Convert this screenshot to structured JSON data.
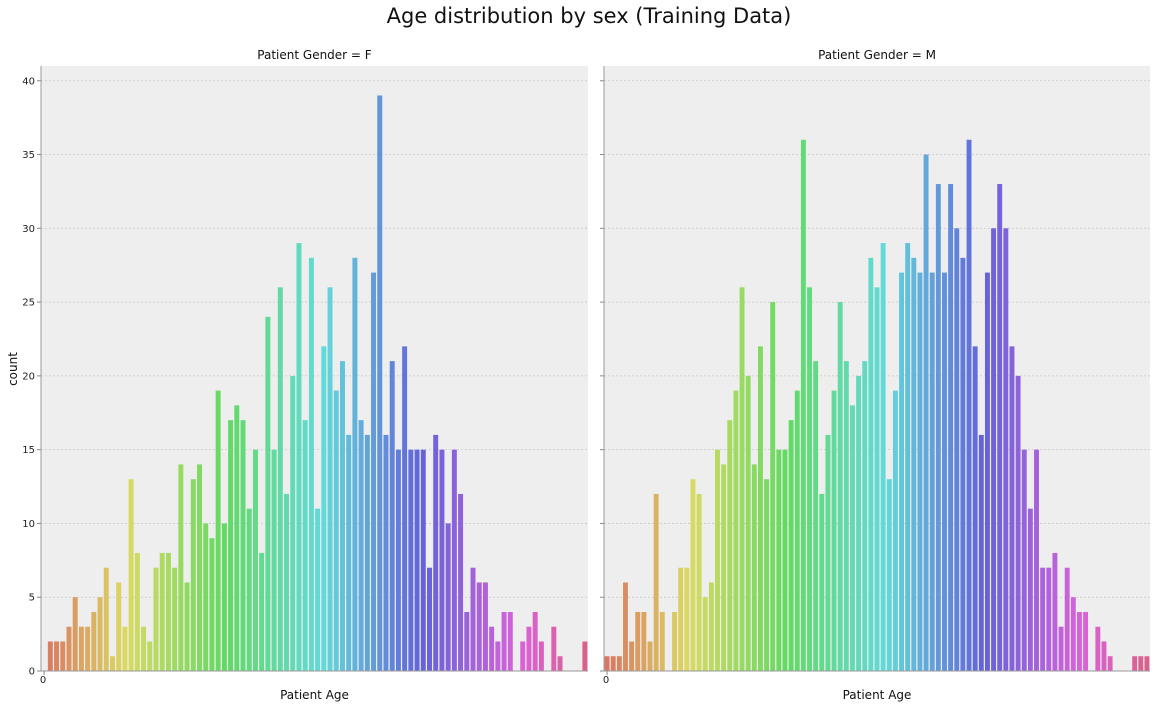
{
  "figure_title": "Age distribution by sex (Training Data)",
  "chart_data": [
    {
      "type": "bar",
      "title": "Patient Gender = F",
      "xlabel": "Patient Age",
      "ylabel": "count",
      "x_tick_labels": [
        "0"
      ],
      "yticks": [
        0,
        5,
        10,
        15,
        20,
        25,
        30,
        35,
        40
      ],
      "ylim": [
        0,
        41
      ],
      "grid": true,
      "values": [
        0,
        2,
        2,
        2,
        3,
        5,
        3,
        3,
        4,
        5,
        7,
        1,
        6,
        3,
        13,
        8,
        3,
        2,
        7,
        8,
        8,
        7,
        14,
        6,
        13,
        14,
        10,
        9,
        19,
        10,
        17,
        18,
        17,
        11,
        15,
        8,
        24,
        15,
        26,
        12,
        20,
        29,
        17,
        28,
        11,
        22,
        26,
        19,
        21,
        16,
        28,
        17,
        16,
        27,
        39,
        16,
        21,
        15,
        22,
        15,
        15,
        15,
        7,
        16,
        15,
        10,
        15,
        12,
        4,
        7,
        6,
        6,
        3,
        2,
        4,
        4,
        0,
        2,
        3,
        4,
        2,
        0,
        3,
        1,
        0,
        0,
        0,
        2
      ]
    },
    {
      "type": "bar",
      "title": "Patient Gender = M",
      "xlabel": "Patient Age",
      "ylabel": "",
      "x_tick_labels": [
        "0"
      ],
      "yticks": [
        0,
        5,
        10,
        15,
        20,
        25,
        30,
        35,
        40
      ],
      "ylim": [
        0,
        41
      ],
      "grid": true,
      "values": [
        1,
        1,
        1,
        6,
        2,
        4,
        4,
        2,
        12,
        4,
        0,
        4,
        7,
        7,
        13,
        12,
        5,
        6,
        15,
        14,
        17,
        19,
        26,
        20,
        14,
        22,
        13,
        25,
        15,
        15,
        17,
        19,
        36,
        26,
        21,
        12,
        16,
        19,
        25,
        21,
        18,
        20,
        21,
        28,
        26,
        29,
        13,
        19,
        27,
        29,
        28,
        27,
        35,
        27,
        33,
        27,
        33,
        30,
        28,
        36,
        22,
        16,
        27,
        30,
        33,
        30,
        22,
        20,
        15,
        11,
        15,
        7,
        7,
        8,
        3,
        7,
        5,
        4,
        4,
        0,
        3,
        2,
        1,
        0,
        0,
        0,
        1,
        1,
        1
      ]
    }
  ]
}
